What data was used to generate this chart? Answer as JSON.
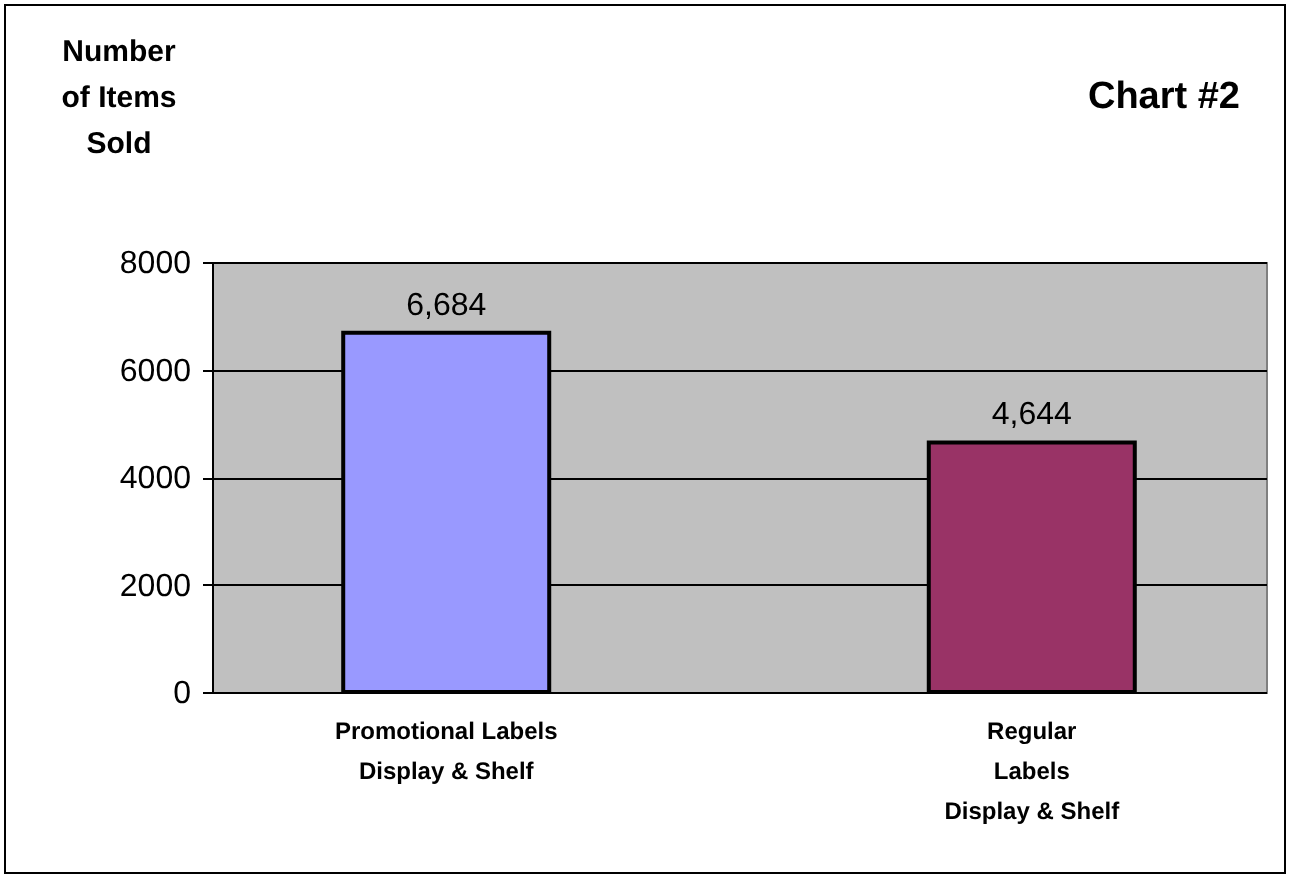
{
  "chart_data": {
    "type": "bar",
    "title": "Chart #2",
    "ylabel": "Number of Items Sold",
    "categories": [
      "Promotional Labels\nDisplay & Shelf",
      "Regular\nLabels\nDisplay & Shelf"
    ],
    "values": [
      6684,
      4644
    ],
    "value_labels": [
      "6,684",
      "4,644"
    ],
    "colors": [
      "#9999ff",
      "#993366"
    ],
    "ylim": [
      0,
      8000
    ],
    "yticks": [
      0,
      2000,
      4000,
      6000,
      8000
    ],
    "grid": true
  }
}
